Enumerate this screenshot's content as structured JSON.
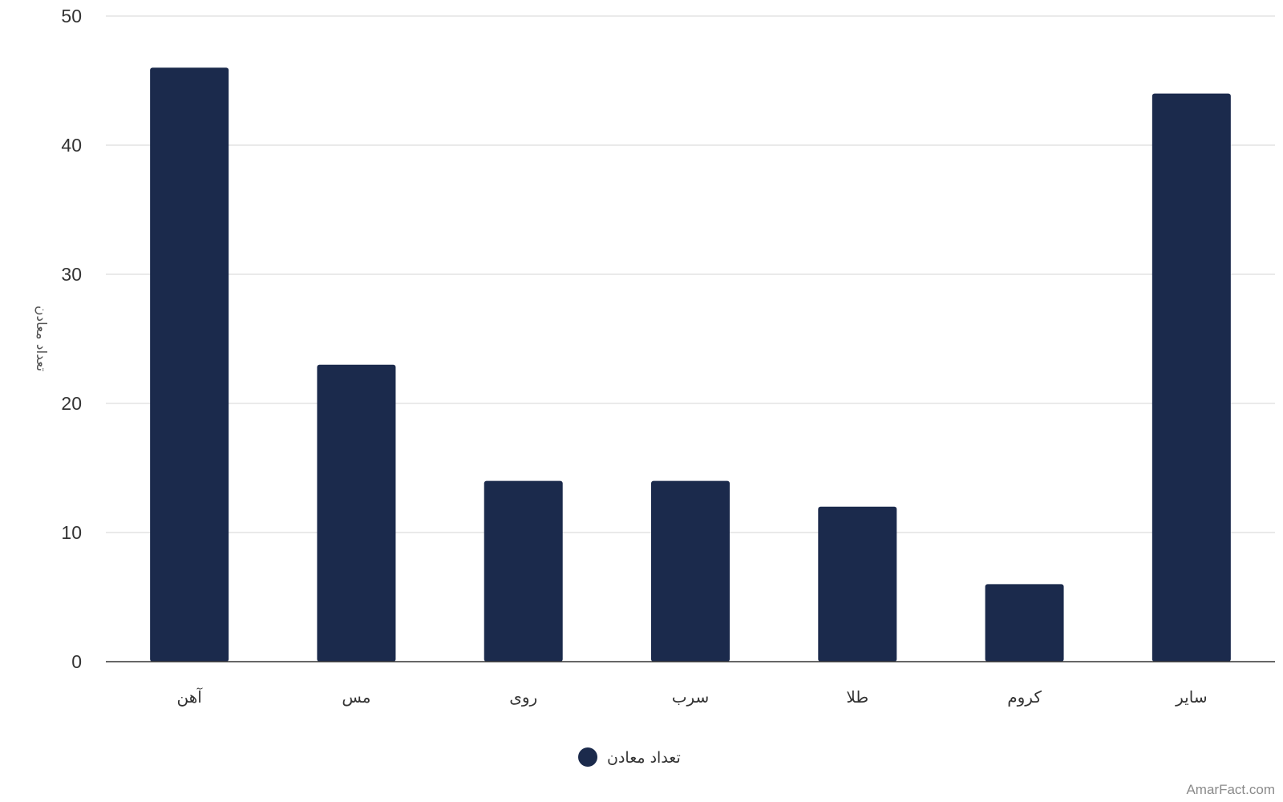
{
  "chart_data": {
    "type": "bar",
    "categories": [
      "آهن",
      "مس",
      "روی",
      "سرب",
      "طلا",
      "کروم",
      "سایر"
    ],
    "series": [
      {
        "name": "تعداد معادن",
        "values": [
          46,
          23,
          14,
          14,
          12,
          6,
          44
        ],
        "color": "#1b2a4c"
      }
    ],
    "ylabel": "تعداد معادن",
    "ylim": [
      0,
      50
    ],
    "yticks": [
      0,
      10,
      20,
      30,
      40,
      50
    ],
    "grid": true,
    "legend": "bottom-center"
  },
  "colors": {
    "bar": "#1b2a4c",
    "grid": "#e3e3e3",
    "baseline": "#333333"
  },
  "credit": "AmarFact.com"
}
